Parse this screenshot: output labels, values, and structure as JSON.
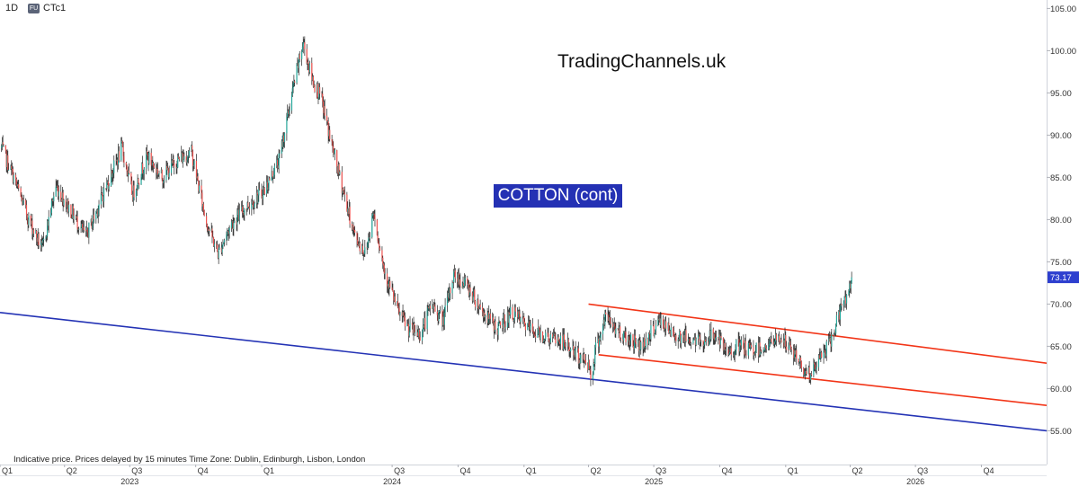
{
  "header": {
    "interval": "1D",
    "badge": "FU",
    "symbol": "CTc1"
  },
  "watermark": "TradingChannels.uk",
  "chart_title": "COTTON (cont)",
  "footnote": "Indicative price. Prices delayed by 15 minutes    Time Zone: Dublin, Edinburgh, Lisbon, London",
  "colors": {
    "up": "#26a69a",
    "down": "#ef5350",
    "channel": "#f23518",
    "support": "#2433b5",
    "price_tag": "#2d3fcf"
  },
  "chart_data": {
    "type": "candlestick",
    "title": "COTTON (cont)",
    "y_axis": {
      "side": "right",
      "ylim": [
        51,
        106
      ],
      "ticks": [
        "55.00",
        "60.00",
        "65.00",
        "70.00",
        "75.00",
        "80.00",
        "85.00",
        "90.00",
        "95.00",
        "100.00",
        "105.00"
      ]
    },
    "x_axis": {
      "range": [
        "2023-01-01",
        "2026-12-31"
      ],
      "quarter_ticks": [
        {
          "label": "Q1",
          "date": "2023-01-01"
        },
        {
          "label": "Q2",
          "date": "2023-04-01"
        },
        {
          "label": "Q3",
          "date": "2023-07-01"
        },
        {
          "label": "Q4",
          "date": "2023-10-01"
        },
        {
          "label": "Q1",
          "date": "2024-01-01"
        },
        {
          "label": "Q3",
          "date": "2024-07-01"
        },
        {
          "label": "Q4",
          "date": "2024-10-01"
        },
        {
          "label": "Q1",
          "date": "2025-01-01"
        },
        {
          "label": "Q2",
          "date": "2025-04-01"
        },
        {
          "label": "Q3",
          "date": "2025-07-01"
        },
        {
          "label": "Q4",
          "date": "2025-10-01"
        },
        {
          "label": "Q1",
          "date": "2026-01-01"
        },
        {
          "label": "Q2",
          "date": "2026-04-01"
        },
        {
          "label": "Q3",
          "date": "2026-07-01"
        },
        {
          "label": "Q4",
          "date": "2026-10-01"
        }
      ],
      "year_labels": [
        {
          "label": "2023",
          "date": "2023-07-01"
        },
        {
          "label": "2024",
          "date": "2024-07-01"
        },
        {
          "label": "2025",
          "date": "2025-07-01"
        },
        {
          "label": "2026",
          "date": "2026-07-01"
        }
      ]
    },
    "last_price": "73.17",
    "price_path": [
      [
        "2023-01-03",
        88.5
      ],
      [
        "2023-01-20",
        85.0
      ],
      [
        "2023-02-10",
        80.0
      ],
      [
        "2023-03-01",
        76.5
      ],
      [
        "2023-03-20",
        84.0
      ],
      [
        "2023-04-10",
        81.0
      ],
      [
        "2023-05-01",
        78.0
      ],
      [
        "2023-05-25",
        83.0
      ],
      [
        "2023-06-20",
        88.5
      ],
      [
        "2023-07-05",
        83.0
      ],
      [
        "2023-07-25",
        87.5
      ],
      [
        "2023-08-15",
        85.0
      ],
      [
        "2023-09-05",
        87.0
      ],
      [
        "2023-09-25",
        88.0
      ],
      [
        "2023-10-15",
        80.0
      ],
      [
        "2023-11-01",
        76.0
      ],
      [
        "2023-11-20",
        79.5
      ],
      [
        "2023-12-10",
        81.5
      ],
      [
        "2024-01-05",
        83.5
      ],
      [
        "2024-01-25",
        87.0
      ],
      [
        "2024-02-15",
        96.0
      ],
      [
        "2024-02-28",
        101.0
      ],
      [
        "2024-03-10",
        97.0
      ],
      [
        "2024-03-25",
        94.0
      ],
      [
        "2024-04-10",
        88.0
      ],
      [
        "2024-04-25",
        83.0
      ],
      [
        "2024-05-10",
        78.0
      ],
      [
        "2024-05-25",
        76.0
      ],
      [
        "2024-06-05",
        81.0
      ],
      [
        "2024-06-20",
        74.0
      ],
      [
        "2024-07-10",
        69.0
      ],
      [
        "2024-07-25",
        67.0
      ],
      [
        "2024-08-10",
        66.5
      ],
      [
        "2024-08-25",
        70.0
      ],
      [
        "2024-09-10",
        68.0
      ],
      [
        "2024-09-25",
        73.5
      ],
      [
        "2024-10-15",
        72.0
      ],
      [
        "2024-11-05",
        69.0
      ],
      [
        "2024-11-25",
        67.0
      ],
      [
        "2024-12-15",
        69.0
      ],
      [
        "2025-01-10",
        67.0
      ],
      [
        "2025-02-05",
        66.0
      ],
      [
        "2025-02-25",
        65.5
      ],
      [
        "2025-03-15",
        64.0
      ],
      [
        "2025-04-01",
        63.0
      ],
      [
        "2025-04-05",
        61.0
      ],
      [
        "2025-04-10",
        64.5
      ],
      [
        "2025-04-25",
        68.5
      ],
      [
        "2025-05-10",
        67.0
      ],
      [
        "2025-05-25",
        66.0
      ],
      [
        "2025-06-15",
        65.0
      ],
      [
        "2025-06-30",
        67.0
      ],
      [
        "2025-07-10",
        68.0
      ],
      [
        "2025-07-25",
        66.5
      ],
      [
        "2025-08-15",
        66.0
      ],
      [
        "2025-09-05",
        65.5
      ],
      [
        "2025-09-25",
        66.5
      ],
      [
        "2025-10-10",
        64.0
      ],
      [
        "2025-10-25",
        65.0
      ],
      [
        "2025-11-15",
        64.5
      ],
      [
        "2025-12-05",
        65.0
      ],
      [
        "2025-12-25",
        66.0
      ],
      [
        "2026-01-10",
        64.5
      ],
      [
        "2026-01-25",
        62.5
      ],
      [
        "2026-02-05",
        61.5
      ],
      [
        "2026-02-20",
        64.0
      ],
      [
        "2026-03-05",
        65.5
      ],
      [
        "2026-03-15",
        68.5
      ],
      [
        "2026-03-25",
        70.5
      ],
      [
        "2026-04-03",
        73.17
      ]
    ],
    "trendlines": [
      {
        "name": "support",
        "color": "#2433b5",
        "points": [
          [
            "2023-01-01",
            69.0
          ],
          [
            "2026-12-31",
            55.0
          ]
        ]
      },
      {
        "name": "channel-upper",
        "color": "#f23518",
        "points": [
          [
            "2025-04-01",
            70.0
          ],
          [
            "2026-12-31",
            63.0
          ]
        ]
      },
      {
        "name": "channel-lower",
        "color": "#f23518",
        "points": [
          [
            "2025-04-15",
            64.0
          ],
          [
            "2026-12-31",
            58.0
          ]
        ]
      }
    ]
  }
}
